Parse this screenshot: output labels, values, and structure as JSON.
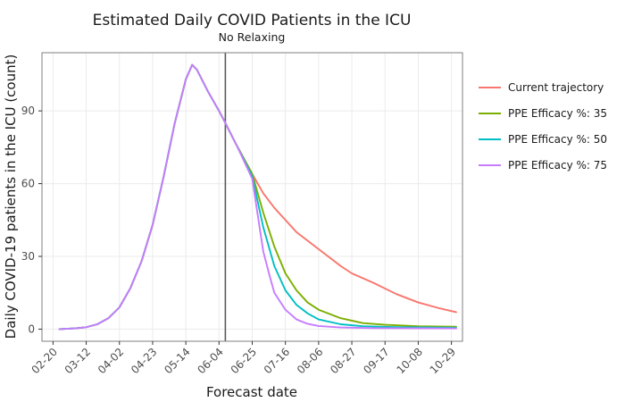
{
  "colors": {
    "background": "#ffffff",
    "panel_border": "#7f7f7f",
    "grid": "#ebebeb",
    "vline": "#595959",
    "text": "#1a1a1a",
    "tick_text": "#4d4d4d"
  },
  "chart_data": {
    "type": "line",
    "title": "Estimated Daily COVID Patients in the ICU",
    "subtitle": "No Relaxing",
    "xlabel": "Forecast date",
    "ylabel": "Daily COVID-19 patients in the ICU (count)",
    "grid": true,
    "legend_position": "right",
    "xlim": [
      "2020-02-13",
      "2020-11-05"
    ],
    "ylim": [
      -5,
      114
    ],
    "x_ticks": [
      {
        "date": "2020-02-20",
        "label": "02-20"
      },
      {
        "date": "2020-03-12",
        "label": "03-12"
      },
      {
        "date": "2020-04-02",
        "label": "04-02"
      },
      {
        "date": "2020-04-23",
        "label": "04-23"
      },
      {
        "date": "2020-05-14",
        "label": "05-14"
      },
      {
        "date": "2020-06-04",
        "label": "06-04"
      },
      {
        "date": "2020-06-25",
        "label": "06-25"
      },
      {
        "date": "2020-07-16",
        "label": "07-16"
      },
      {
        "date": "2020-08-06",
        "label": "08-06"
      },
      {
        "date": "2020-08-27",
        "label": "08-27"
      },
      {
        "date": "2020-09-17",
        "label": "09-17"
      },
      {
        "date": "2020-10-08",
        "label": "10-08"
      },
      {
        "date": "2020-10-29",
        "label": "10-29"
      }
    ],
    "y_ticks": [
      0,
      30,
      60,
      90
    ],
    "vline_date": "2020-06-08",
    "series": [
      {
        "name": "Current trajectory",
        "color": "#f8766d",
        "points": [
          [
            "2020-02-24",
            0
          ],
          [
            "2020-03-05",
            0.3
          ],
          [
            "2020-03-12",
            0.8
          ],
          [
            "2020-03-19",
            2
          ],
          [
            "2020-03-26",
            4.5
          ],
          [
            "2020-04-02",
            9
          ],
          [
            "2020-04-09",
            17
          ],
          [
            "2020-04-16",
            28
          ],
          [
            "2020-04-23",
            43
          ],
          [
            "2020-04-30",
            63
          ],
          [
            "2020-05-07",
            85
          ],
          [
            "2020-05-14",
            103
          ],
          [
            "2020-05-18",
            109
          ],
          [
            "2020-05-21",
            107
          ],
          [
            "2020-05-28",
            98
          ],
          [
            "2020-06-04",
            90
          ],
          [
            "2020-06-08",
            85
          ],
          [
            "2020-06-15",
            76
          ],
          [
            "2020-06-25",
            64
          ],
          [
            "2020-07-02",
            56
          ],
          [
            "2020-07-09",
            50
          ],
          [
            "2020-07-16",
            45
          ],
          [
            "2020-07-23",
            40
          ],
          [
            "2020-08-06",
            33
          ],
          [
            "2020-08-20",
            26
          ],
          [
            "2020-08-27",
            23
          ],
          [
            "2020-09-10",
            19
          ],
          [
            "2020-09-24",
            14.5
          ],
          [
            "2020-10-08",
            11
          ],
          [
            "2020-10-22",
            8.5
          ],
          [
            "2020-11-01",
            7
          ]
        ]
      },
      {
        "name": "PPE Efficacy %: 35",
        "color": "#7cae00",
        "points": [
          [
            "2020-02-24",
            0
          ],
          [
            "2020-03-05",
            0.3
          ],
          [
            "2020-03-12",
            0.8
          ],
          [
            "2020-03-19",
            2
          ],
          [
            "2020-03-26",
            4.5
          ],
          [
            "2020-04-02",
            9
          ],
          [
            "2020-04-09",
            17
          ],
          [
            "2020-04-16",
            28
          ],
          [
            "2020-04-23",
            43
          ],
          [
            "2020-04-30",
            63
          ],
          [
            "2020-05-07",
            85
          ],
          [
            "2020-05-14",
            103
          ],
          [
            "2020-05-18",
            109
          ],
          [
            "2020-05-21",
            107
          ],
          [
            "2020-05-28",
            98
          ],
          [
            "2020-06-04",
            90
          ],
          [
            "2020-06-08",
            85
          ],
          [
            "2020-06-15",
            76
          ],
          [
            "2020-06-25",
            64
          ],
          [
            "2020-07-02",
            48
          ],
          [
            "2020-07-09",
            34
          ],
          [
            "2020-07-16",
            23
          ],
          [
            "2020-07-23",
            16
          ],
          [
            "2020-07-30",
            11
          ],
          [
            "2020-08-06",
            8
          ],
          [
            "2020-08-20",
            4.5
          ],
          [
            "2020-09-03",
            2.5
          ],
          [
            "2020-09-17",
            1.8
          ],
          [
            "2020-10-08",
            1.2
          ],
          [
            "2020-11-01",
            1
          ]
        ]
      },
      {
        "name": "PPE Efficacy %: 50",
        "color": "#00bfc4",
        "points": [
          [
            "2020-02-24",
            0
          ],
          [
            "2020-03-05",
            0.3
          ],
          [
            "2020-03-12",
            0.8
          ],
          [
            "2020-03-19",
            2
          ],
          [
            "2020-03-26",
            4.5
          ],
          [
            "2020-04-02",
            9
          ],
          [
            "2020-04-09",
            17
          ],
          [
            "2020-04-16",
            28
          ],
          [
            "2020-04-23",
            43
          ],
          [
            "2020-04-30",
            63
          ],
          [
            "2020-05-07",
            85
          ],
          [
            "2020-05-14",
            103
          ],
          [
            "2020-05-18",
            109
          ],
          [
            "2020-05-21",
            107
          ],
          [
            "2020-05-28",
            98
          ],
          [
            "2020-06-04",
            90
          ],
          [
            "2020-06-08",
            85
          ],
          [
            "2020-06-15",
            76
          ],
          [
            "2020-06-25",
            63
          ],
          [
            "2020-07-02",
            42
          ],
          [
            "2020-07-09",
            26
          ],
          [
            "2020-07-16",
            16
          ],
          [
            "2020-07-23",
            10
          ],
          [
            "2020-07-30",
            6.5
          ],
          [
            "2020-08-06",
            4
          ],
          [
            "2020-08-20",
            2
          ],
          [
            "2020-09-03",
            1.2
          ],
          [
            "2020-09-24",
            0.8
          ],
          [
            "2020-11-01",
            0.6
          ]
        ]
      },
      {
        "name": "PPE Efficacy %: 75",
        "color": "#c77cff",
        "points": [
          [
            "2020-02-24",
            0
          ],
          [
            "2020-03-05",
            0.3
          ],
          [
            "2020-03-12",
            0.8
          ],
          [
            "2020-03-19",
            2
          ],
          [
            "2020-03-26",
            4.5
          ],
          [
            "2020-04-02",
            9
          ],
          [
            "2020-04-09",
            17
          ],
          [
            "2020-04-16",
            28
          ],
          [
            "2020-04-23",
            43
          ],
          [
            "2020-04-30",
            63
          ],
          [
            "2020-05-07",
            85
          ],
          [
            "2020-05-14",
            103
          ],
          [
            "2020-05-18",
            109
          ],
          [
            "2020-05-21",
            107
          ],
          [
            "2020-05-28",
            98
          ],
          [
            "2020-06-04",
            90
          ],
          [
            "2020-06-08",
            85
          ],
          [
            "2020-06-15",
            76
          ],
          [
            "2020-06-25",
            62
          ],
          [
            "2020-07-02",
            32
          ],
          [
            "2020-07-06",
            22
          ],
          [
            "2020-07-09",
            15
          ],
          [
            "2020-07-16",
            8
          ],
          [
            "2020-07-23",
            4
          ],
          [
            "2020-07-30",
            2.2
          ],
          [
            "2020-08-06",
            1.3
          ],
          [
            "2020-08-20",
            0.7
          ],
          [
            "2020-09-10",
            0.4
          ],
          [
            "2020-11-01",
            0.3
          ]
        ]
      }
    ]
  }
}
